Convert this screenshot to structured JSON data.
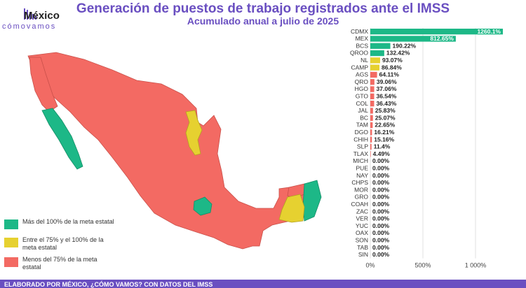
{
  "header": {
    "title": "Generación de puestos de trabajo registrados ante el IMSS",
    "subtitle": "Acumulado anual a julio de 2025"
  },
  "logo": {
    "main": "México",
    "sub": "cómovamos"
  },
  "legend": [
    {
      "label": "Más del 100% de la meta estatal",
      "color": "#1db887"
    },
    {
      "label": "Entre el 75% y el 100% de la meta estatal",
      "color": "#e6d130"
    },
    {
      "label": "Menos del 75% de la meta estatal",
      "color": "#f36a63"
    }
  ],
  "footer": {
    "text": "ELABORADO POR MÉXICO, ¿CÓMO VAMOS? CON DATOS DEL IMSS"
  },
  "chart_data": {
    "type": "bar",
    "orientation": "horizontal",
    "categories": [
      "CDMX",
      "MEX",
      "BCS",
      "QROO",
      "NL",
      "CAMP",
      "AGS",
      "QRO",
      "HGO",
      "GTO",
      "COL",
      "JAL",
      "BC",
      "TAM",
      "DGO",
      "CHIH",
      "SLP",
      "TLAX",
      "MICH",
      "PUE",
      "NAY",
      "CHPS",
      "MOR",
      "GRO",
      "COAH",
      "ZAC",
      "VER",
      "YUC",
      "OAX",
      "SON",
      "TAB",
      "SIN"
    ],
    "values": [
      1260.1,
      812.65,
      190.22,
      132.42,
      93.07,
      86.84,
      64.11,
      39.06,
      37.06,
      36.54,
      36.43,
      25.83,
      25.07,
      22.65,
      16.21,
      15.16,
      11.4,
      4.49,
      0,
      0,
      0,
      0,
      0,
      0,
      0,
      0,
      0,
      0,
      0,
      0,
      0,
      0
    ],
    "labels": [
      "1260.1%",
      "812.65%",
      "190.22%",
      "132.42%",
      "93.07%",
      "86.84%",
      "64.11%",
      "39.06%",
      "37.06%",
      "36.54%",
      "36.43%",
      "25.83%",
      "25.07%",
      "22.65%",
      "16.21%",
      "15.16%",
      "11.4%",
      "4.49%",
      "0.00%",
      "0.00%",
      "0.00%",
      "0.00%",
      "0.00%",
      "0.00%",
      "0.00%",
      "0.00%",
      "0.00%",
      "0.00%",
      "0.00%",
      "0.00%",
      "0.00%",
      "0.00%"
    ],
    "colors": {
      "high": "#1db887",
      "mid": "#e6d130",
      "low": "#f36a63"
    },
    "xlim": [
      0,
      1400
    ],
    "xticks": [
      0,
      500,
      1000
    ],
    "xtick_labels": [
      "0%",
      "500%",
      "1 000%"
    ],
    "grid": true
  },
  "map_states": [
    {
      "state": "BC",
      "status": "low"
    },
    {
      "state": "BCS",
      "status": "high"
    },
    {
      "state": "SON",
      "status": "low"
    },
    {
      "state": "CHIH",
      "status": "low"
    },
    {
      "state": "COAH",
      "status": "low"
    },
    {
      "state": "NL",
      "status": "mid"
    },
    {
      "state": "TAM",
      "status": "low"
    },
    {
      "state": "SIN",
      "status": "low"
    },
    {
      "state": "DGO",
      "status": "low"
    },
    {
      "state": "CDMX/MEX",
      "status": "high"
    },
    {
      "state": "CAMP",
      "status": "mid"
    },
    {
      "state": "QROO",
      "status": "high"
    },
    {
      "state": "YUC",
      "status": "low"
    }
  ]
}
